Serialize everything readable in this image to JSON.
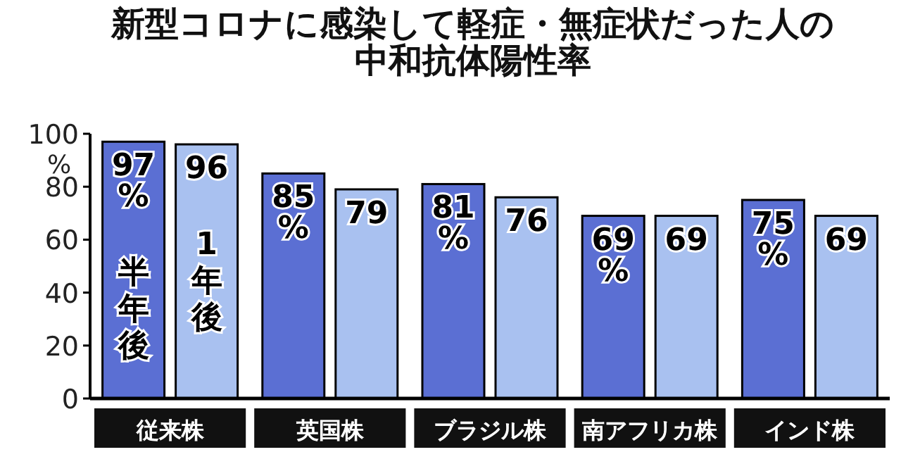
{
  "chart_data": {
    "type": "bar",
    "title": "新型コロナに感染して軽症・無症状だった人の中和抗体陽性率",
    "ylabel": "%",
    "categories": [
      "従来株",
      "英国株",
      "ブラジル株",
      "南アフリカ株",
      "インド株"
    ],
    "series": [
      {
        "name": "半年後",
        "color": "#5b6fd3",
        "values": [
          97,
          85,
          81,
          69,
          75
        ],
        "value_labels": [
          "97%",
          "85%",
          "81%",
          "69%",
          "75%"
        ]
      },
      {
        "name": "1年後",
        "color": "#a9c1f0",
        "values": [
          96,
          79,
          76,
          69,
          69
        ],
        "value_labels": [
          "96",
          "79",
          "76",
          "69",
          "69"
        ]
      }
    ],
    "ylim": [
      0,
      100
    ],
    "yticks": [
      0,
      20,
      40,
      60,
      80,
      100
    ],
    "grid": false,
    "legend": "left"
  }
}
